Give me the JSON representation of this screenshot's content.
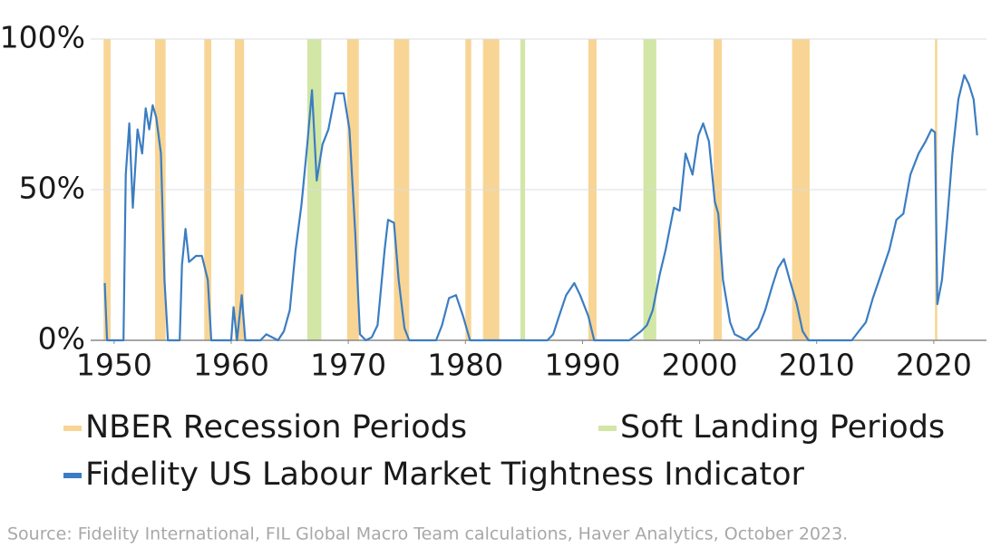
{
  "chart_data": {
    "type": "line",
    "source": "Source: Fidelity International, FIL Global Macro Team calculations, Haver Analytics, October 2023.",
    "xlim": [
      1948,
      2024.5
    ],
    "xticks": [
      1950,
      1960,
      1970,
      1980,
      1990,
      2000,
      2010,
      2020
    ],
    "ylim": [
      0,
      100
    ],
    "yticks": [
      {
        "value": 0,
        "label": "0%"
      },
      {
        "value": 50,
        "label": "50%"
      },
      {
        "value": 100,
        "label": "100%"
      }
    ],
    "grid": true,
    "legend": "bottom",
    "periods": [
      {
        "name": "NBER Recession Periods",
        "color": "#f8d595",
        "ranges": [
          [
            1949.1,
            1949.7
          ],
          [
            1953.5,
            1954.4
          ],
          [
            1957.7,
            1958.3
          ],
          [
            1960.3,
            1961.1
          ],
          [
            1969.9,
            1970.9
          ],
          [
            1973.9,
            1975.2
          ],
          [
            1980.0,
            1980.5
          ],
          [
            1981.5,
            1982.9
          ],
          [
            1990.5,
            1991.2
          ],
          [
            2001.2,
            2001.9
          ],
          [
            2007.9,
            2009.4
          ],
          [
            2020.1,
            2020.3
          ]
        ]
      },
      {
        "name": "Soft Landing Periods",
        "color": "#d2e6a6",
        "ranges": [
          [
            1966.5,
            1967.7
          ],
          [
            1984.7,
            1985.1
          ],
          [
            1995.2,
            1996.3
          ]
        ]
      }
    ],
    "series": [
      {
        "name": "Fidelity US Labour Market Tightness Indicator",
        "color": "#3b7dc2",
        "x": [
          1949.2,
          1949.4,
          1950.8,
          1951.0,
          1951.3,
          1951.6,
          1952.0,
          1952.4,
          1952.7,
          1953.0,
          1953.3,
          1953.6,
          1954.0,
          1954.3,
          1954.6,
          1955.6,
          1955.8,
          1956.1,
          1956.4,
          1957.0,
          1957.5,
          1958.0,
          1958.3,
          1960.0,
          1960.2,
          1960.5,
          1960.9,
          1961.2,
          1962.5,
          1963.0,
          1964.0,
          1964.5,
          1965.0,
          1965.5,
          1966.0,
          1966.5,
          1966.9,
          1967.3,
          1967.8,
          1968.3,
          1968.9,
          1969.6,
          1970.1,
          1970.6,
          1971.0,
          1971.5,
          1972.0,
          1972.5,
          1973.1,
          1973.4,
          1973.9,
          1974.3,
          1974.8,
          1975.2,
          1977.5,
          1978.0,
          1978.6,
          1979.2,
          1979.8,
          1980.4,
          1987.0,
          1987.5,
          1988.0,
          1988.6,
          1989.3,
          1989.8,
          1990.5,
          1991.0,
          1994.0,
          1995.0,
          1995.5,
          1996.0,
          1996.6,
          1997.1,
          1997.8,
          1998.3,
          1998.8,
          1999.4,
          1999.9,
          2000.3,
          2000.8,
          2001.3,
          2001.6,
          2002.0,
          2002.6,
          2003.0,
          2004.0,
          2005.0,
          2005.6,
          2006.2,
          2006.7,
          2007.2,
          2007.7,
          2008.3,
          2008.8,
          2009.3,
          2013.0,
          2013.6,
          2014.2,
          2014.8,
          2015.5,
          2016.2,
          2016.8,
          2017.4,
          2018.0,
          2018.7,
          2019.3,
          2019.8,
          2020.1,
          2020.3,
          2020.7,
          2021.1,
          2021.6,
          2022.1,
          2022.6,
          2023.0,
          2023.4,
          2023.7
        ],
        "values": [
          19,
          0,
          0,
          55,
          72,
          44,
          70,
          62,
          77,
          70,
          78,
          74,
          62,
          20,
          0,
          0,
          25,
          37,
          26,
          28,
          28,
          20,
          0,
          0,
          11,
          0,
          15,
          0,
          0,
          2,
          0,
          3,
          10,
          30,
          45,
          65,
          83,
          53,
          65,
          70,
          82,
          82,
          70,
          35,
          2,
          0,
          1,
          5,
          30,
          40,
          39,
          20,
          4,
          0,
          0,
          5,
          14,
          15,
          8,
          0,
          0,
          2,
          8,
          15,
          19,
          15,
          8,
          0,
          0,
          3,
          5,
          10,
          22,
          30,
          44,
          43,
          62,
          55,
          68,
          72,
          66,
          46,
          42,
          20,
          6,
          2,
          0,
          4,
          10,
          18,
          24,
          27,
          20,
          12,
          3,
          0,
          0,
          3,
          6,
          14,
          22,
          30,
          40,
          42,
          55,
          62,
          66,
          70,
          69,
          12,
          20,
          38,
          62,
          80,
          88,
          85,
          80,
          68
        ]
      }
    ]
  }
}
